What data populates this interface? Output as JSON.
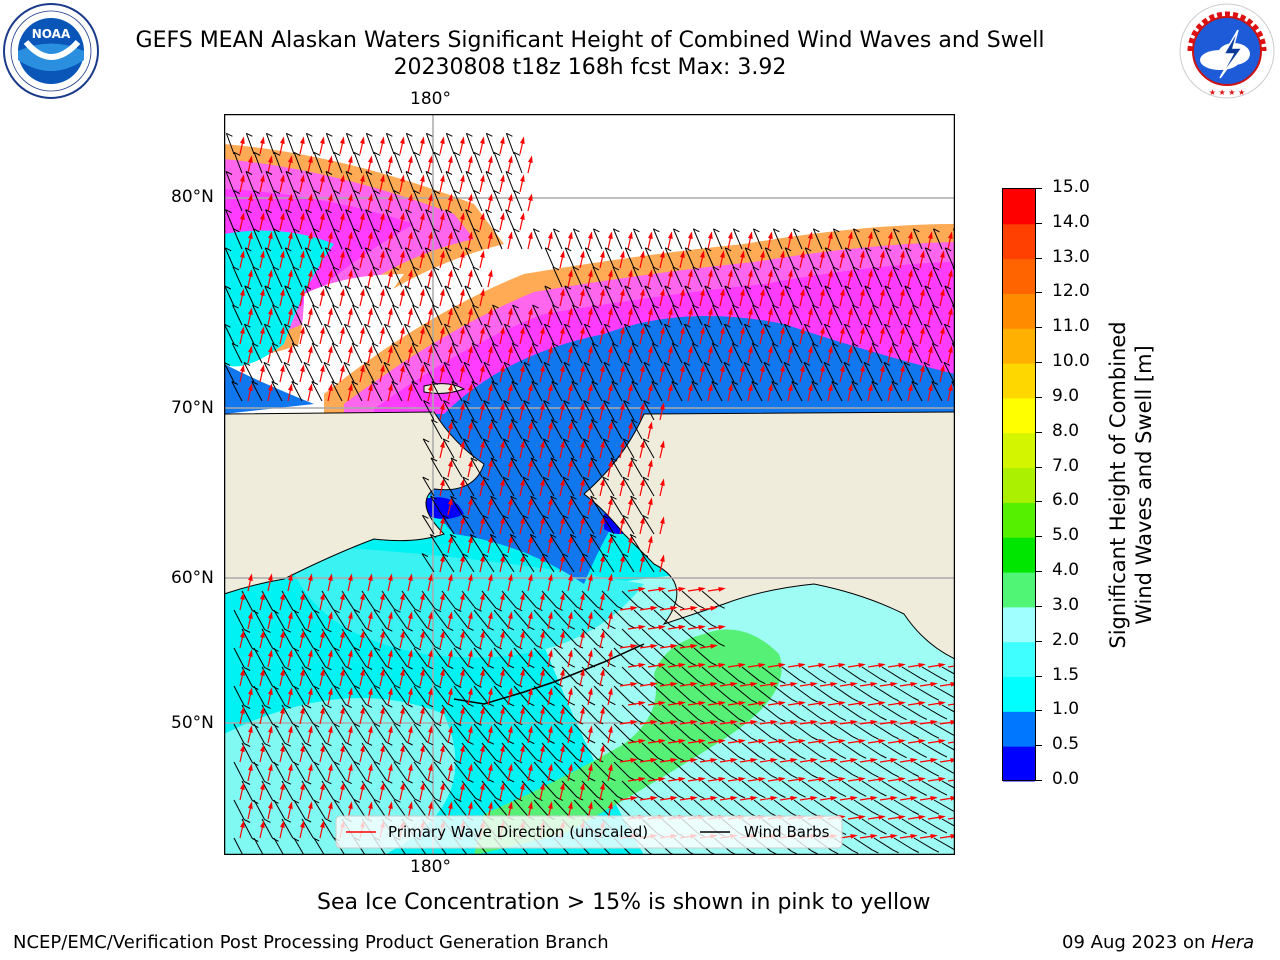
{
  "header": {
    "title_line1": "GEFS MEAN Alaskan Waters Significant Height of Combined Wind Waves and Swell",
    "title_line2": "20230808 t18z 168h fcst   Max: 3.92"
  },
  "logos": {
    "noaa_text": "NOAA",
    "nws_text": "NATIONAL WEATHER SERVICE"
  },
  "map": {
    "lon_label_top": "180°",
    "lon_label_bottom": "180°",
    "lat_labels": [
      "80°N",
      "70°N",
      "60°N",
      "50°N"
    ],
    "colors": {
      "land": "#efecdc",
      "ocean_low": "#00f2f2",
      "ocean_light": "#9ffcf4",
      "ocean_mid": "#4ff7f0",
      "shallow_blue": "#1177ee",
      "deep_blue": "#0000ff",
      "swell_green": "#55f075",
      "ice_pink": "#ff3cff",
      "ice_magenta": "#ff66ee",
      "ice_orange": "#ffaa55",
      "ice_yellow": "#ffe64d",
      "wave_arrow": "#ff0000",
      "wind_barb": "#000000"
    }
  },
  "legend": {
    "primary_wave": "Primary Wave Direction (unscaled)",
    "wind_barbs": "Wind Barbs"
  },
  "colorbar": {
    "label_line1": "Significant Height of Combined",
    "label_line2": "Wind Waves and Swell [m]",
    "ticks": [
      "15.0",
      "14.0",
      "13.0",
      "12.0",
      "11.0",
      "10.0",
      "9.0",
      "8.0",
      "7.0",
      "6.0",
      "5.0",
      "4.0",
      "3.0",
      "2.0",
      "1.5",
      "1.0",
      "0.5",
      "0.0"
    ],
    "colors": [
      "#0000ff",
      "#0077ff",
      "#00ffff",
      "#40ffff",
      "#a0ffff",
      "#50f575",
      "#00e600",
      "#55f000",
      "#aaf000",
      "#d4f500",
      "#ffff00",
      "#ffd700",
      "#ffb000",
      "#ff8c00",
      "#ff6400",
      "#ff4000",
      "#ff0000"
    ]
  },
  "note": "Sea Ice Concentration > 15% is shown in pink to yellow",
  "footer": {
    "left": "NCEP/EMC/Verification Post Processing Product Generation Branch",
    "date": "09 Aug 2023 on ",
    "machine": "Hera"
  }
}
